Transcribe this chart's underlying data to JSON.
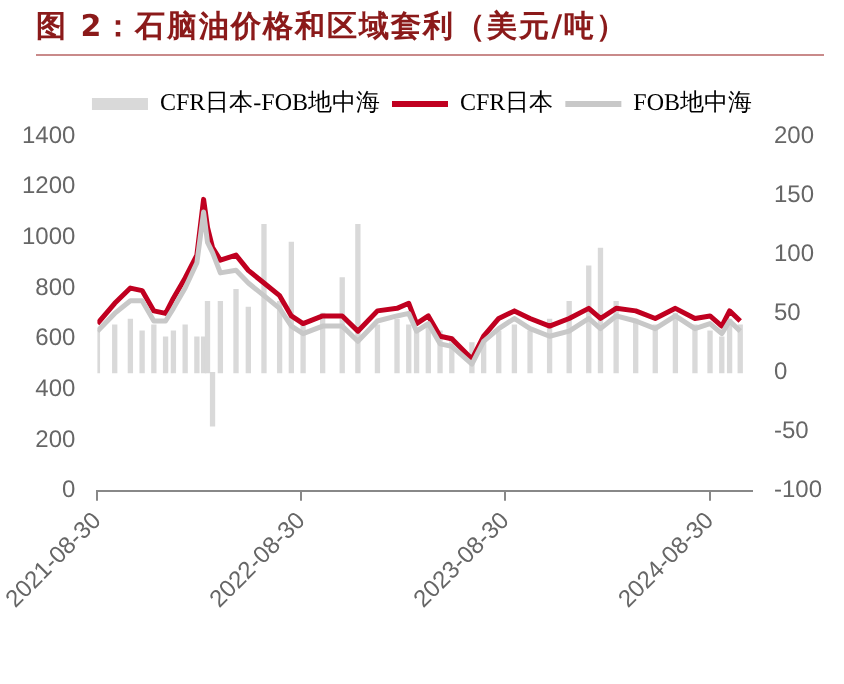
{
  "chart_data": {
    "type": "line",
    "title": "图 2：石脑油价格和区域套利（美元/吨）",
    "x": [
      "2021-08-30",
      "2021-09-30",
      "2021-10-28",
      "2021-11-18",
      "2021-12-09",
      "2021-12-30",
      "2022-01-13",
      "2022-02-03",
      "2022-02-24",
      "2022-03-08",
      "2022-03-15",
      "2022-03-24",
      "2022-04-07",
      "2022-05-05",
      "2022-05-27",
      "2022-06-24",
      "2022-07-22",
      "2022-08-12",
      "2022-09-02",
      "2022-10-07",
      "2022-11-11",
      "2022-12-09",
      "2023-01-13",
      "2023-02-17",
      "2023-03-10",
      "2023-03-24",
      "2023-04-14",
      "2023-05-05",
      "2023-05-26",
      "2023-07-01",
      "2023-07-22",
      "2023-08-18",
      "2023-09-15",
      "2023-10-13",
      "2023-11-17",
      "2023-12-22",
      "2024-01-26",
      "2024-02-16",
      "2024-03-15",
      "2024-04-19",
      "2024-05-24",
      "2024-06-29",
      "2024-08-03",
      "2024-08-30",
      "2024-09-20",
      "2024-10-04",
      "2024-10-23"
    ],
    "series": [
      {
        "name": "CFR日本-FOB地中海",
        "type": "bar",
        "axis": "y2",
        "color": "#d9d9d9",
        "values": [
          35,
          40,
          45,
          35,
          40,
          30,
          35,
          40,
          30,
          30,
          60,
          -45,
          60,
          70,
          55,
          125,
          60,
          110,
          40,
          50,
          80,
          125,
          40,
          45,
          40,
          35,
          40,
          35,
          30,
          25,
          30,
          35,
          40,
          35,
          45,
          60,
          90,
          105,
          60,
          45,
          40,
          50,
          40,
          35,
          30,
          45,
          40
        ]
      },
      {
        "name": "CFR日本",
        "color": "#c00020",
        "values": [
          660,
          740,
          800,
          790,
          710,
          700,
          760,
          840,
          930,
          1150,
          1040,
          960,
          910,
          930,
          870,
          820,
          770,
          690,
          660,
          690,
          690,
          630,
          710,
          720,
          740,
          660,
          690,
          610,
          600,
          520,
          610,
          680,
          710,
          680,
          650,
          680,
          720,
          680,
          720,
          710,
          680,
          720,
          680,
          690,
          650,
          710,
          670
        ]
      },
      {
        "name": "FOB地中海",
        "color": "#c8c8c8",
        "values": [
          630,
          700,
          750,
          750,
          670,
          670,
          720,
          800,
          900,
          1100,
          980,
          940,
          860,
          870,
          820,
          770,
          720,
          650,
          620,
          650,
          650,
          590,
          670,
          690,
          700,
          630,
          660,
          580,
          570,
          500,
          590,
          640,
          680,
          640,
          610,
          630,
          680,
          640,
          690,
          670,
          640,
          690,
          640,
          660,
          620,
          670,
          630
        ]
      }
    ],
    "xlim": [
      "2021-08-30",
      "2024-11-13"
    ],
    "xticks": [
      "2021-08-30",
      "2022-08-30",
      "2023-08-30",
      "2024-08-30"
    ],
    "ylim": [
      0,
      1400
    ],
    "yticks": [
      0,
      200,
      400,
      600,
      800,
      1000,
      1200,
      1400
    ],
    "y2lim": [
      -100,
      200
    ],
    "y2ticks": [
      -100,
      -50,
      0,
      50,
      100,
      150,
      200
    ],
    "grid": false,
    "legend": "top",
    "marker": "none",
    "line_style": "solid"
  }
}
